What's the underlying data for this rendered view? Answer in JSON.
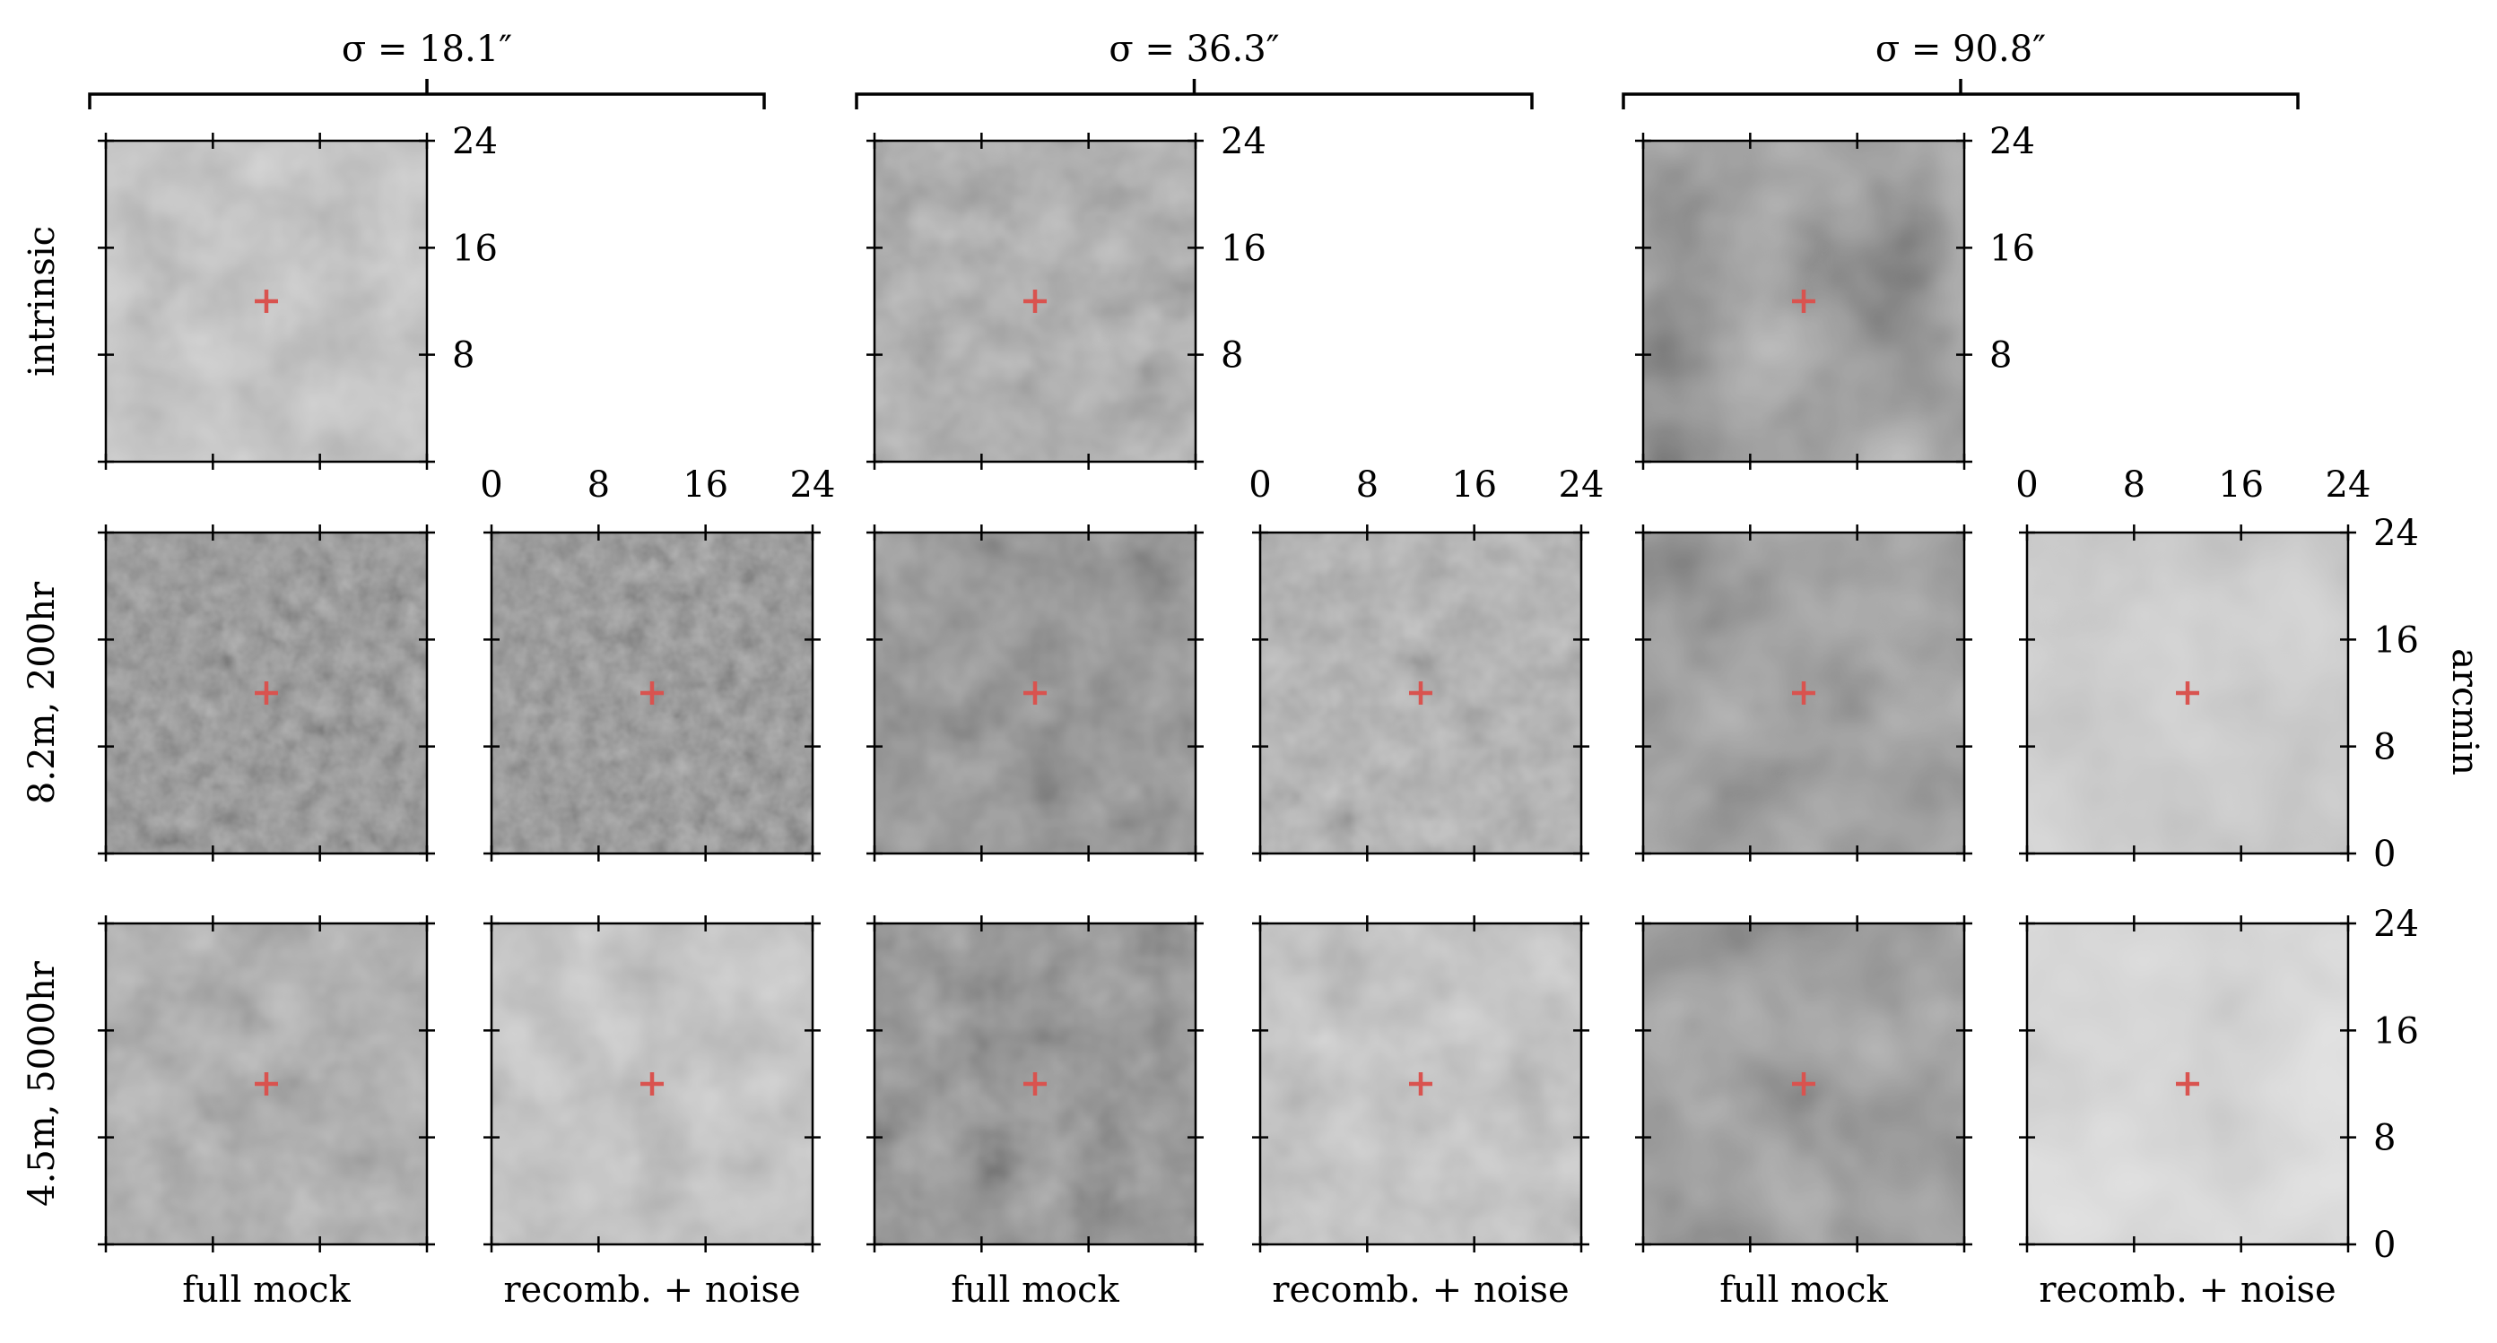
{
  "figure": {
    "column_groups": [
      {
        "title": "σ = 18.1″"
      },
      {
        "title": "σ = 36.3″"
      },
      {
        "title": "σ = 90.8″"
      }
    ],
    "row_labels": [
      "intrinsic",
      "8.2m, 200hr",
      "4.5m, 5000hr"
    ],
    "column_labels": [
      "full mock",
      "recomb. + noise",
      "full mock",
      "recomb. + noise",
      "full mock",
      "recomb. + noise"
    ],
    "axis_ticks": [
      "0",
      "8",
      "16",
      "24"
    ],
    "axis_unit": "arcmin",
    "marker": {
      "symbol": "+",
      "color": "#d9534f"
    },
    "panels": [
      {
        "row": 0,
        "col": 0,
        "tone": "light",
        "seed": 11
      },
      {
        "row": 0,
        "col": 2,
        "tone": "mid",
        "seed": 12
      },
      {
        "row": 0,
        "col": 4,
        "tone": "dark-smooth",
        "seed": 13
      },
      {
        "row": 1,
        "col": 0,
        "tone": "noisy-dark",
        "seed": 21
      },
      {
        "row": 1,
        "col": 1,
        "tone": "noisy-dark",
        "seed": 22
      },
      {
        "row": 1,
        "col": 2,
        "tone": "dark",
        "seed": 23
      },
      {
        "row": 1,
        "col": 3,
        "tone": "mid-light",
        "seed": 24
      },
      {
        "row": 1,
        "col": 4,
        "tone": "dark-smooth",
        "seed": 25
      },
      {
        "row": 1,
        "col": 5,
        "tone": "light-smooth",
        "seed": 26
      },
      {
        "row": 2,
        "col": 0,
        "tone": "mid",
        "seed": 31
      },
      {
        "row": 2,
        "col": 1,
        "tone": "light",
        "seed": 32
      },
      {
        "row": 2,
        "col": 2,
        "tone": "dark",
        "seed": 33
      },
      {
        "row": 2,
        "col": 3,
        "tone": "light",
        "seed": 34
      },
      {
        "row": 2,
        "col": 4,
        "tone": "dark-smooth",
        "seed": 35
      },
      {
        "row": 2,
        "col": 5,
        "tone": "very-light-smooth",
        "seed": 36
      }
    ]
  }
}
